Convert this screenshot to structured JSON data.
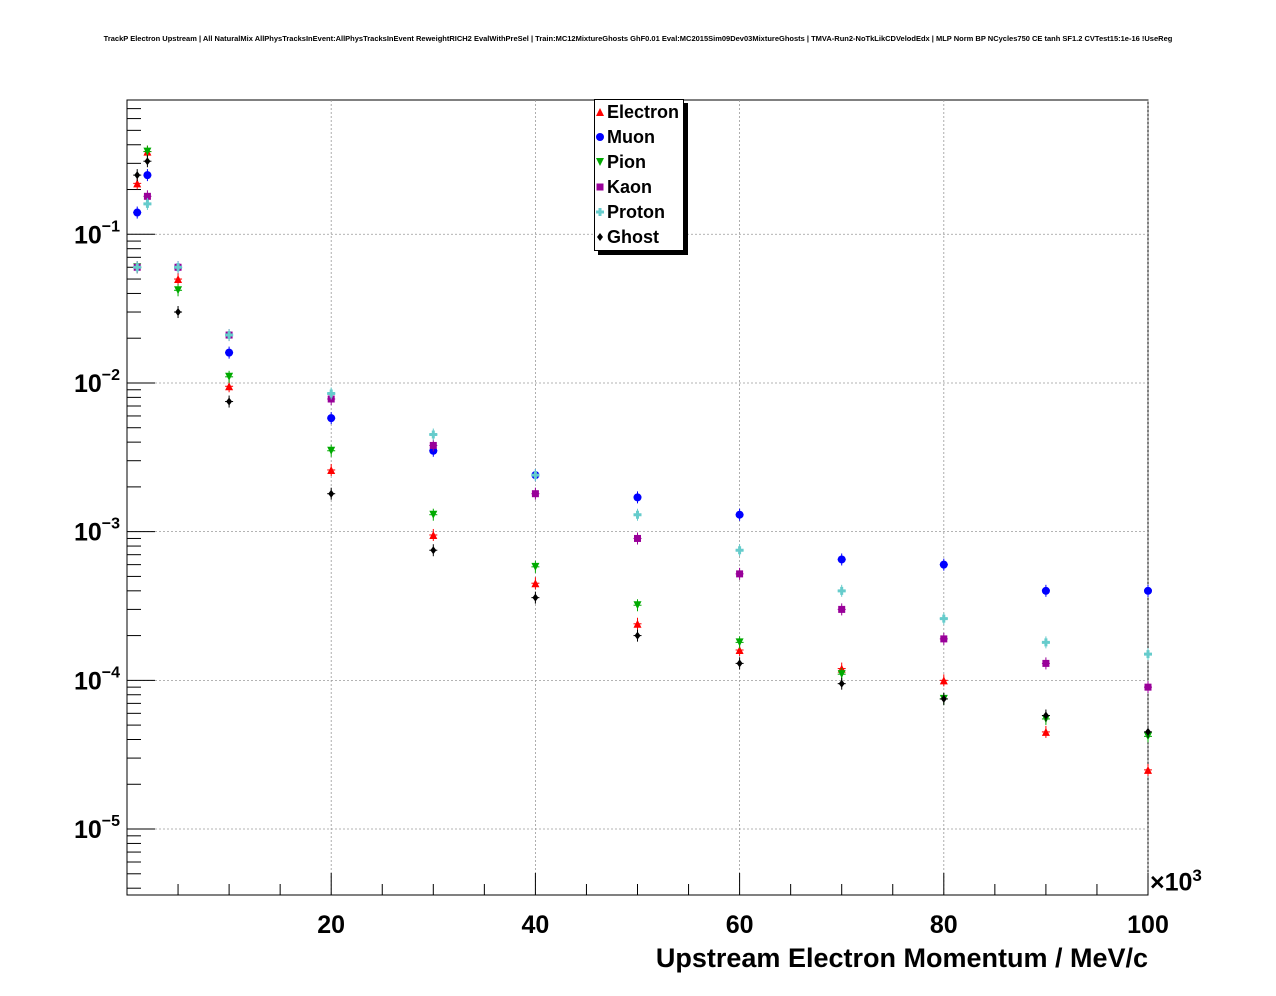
{
  "chart_data": {
    "type": "scatter",
    "title": "TrackP Electron Upstream | All NaturalMix AllPhysTracksInEvent:AllPhysTracksInEvent ReweightRICH2 EvalWithPreSel | Train:MC12MixtureGhosts GhF0.01 Eval:MC2015Sim09Dev03MixtureGhosts | TMVA-Run2-NoTkLikCDVelodEdx | MLP Norm BP NCycles750 CE tanh SF1.2 CVTest15:1e-16 !UseReg",
    "xlabel": "Upstream Electron Momentum / MeV/c",
    "x_multiplier": "×10",
    "x_multiplier_exp": "3",
    "ylabel": "",
    "y_scale": "log",
    "xlim": [
      0,
      100
    ],
    "ylim": [
      3.6e-06,
      0.8
    ],
    "x_ticks": [
      20,
      40,
      60,
      80,
      100
    ],
    "x_tick_labels": [
      "20",
      "40",
      "60",
      "80",
      "100"
    ],
    "y_ticks": [
      1e-05,
      0.0001,
      0.001,
      0.01,
      0.1
    ],
    "y_tick_mantissa": "10",
    "y_tick_exponents": [
      "−5",
      "−4",
      "−3",
      "−2",
      "−1"
    ],
    "grid": true,
    "legend_position": "top-center",
    "series": [
      {
        "name": "Electron",
        "color": "#ff0000",
        "marker": "triangle-up",
        "x": [
          1,
          2,
          5,
          10,
          20,
          30,
          40,
          50,
          60,
          70,
          80,
          90,
          100
        ],
        "y": [
          0.22,
          0.36,
          0.05,
          0.0095,
          0.0026,
          0.00095,
          0.00045,
          0.00024,
          0.00016,
          0.00012,
          0.0001,
          4.5e-05,
          2.5e-05
        ]
      },
      {
        "name": "Muon",
        "color": "#0000ff",
        "marker": "circle",
        "x": [
          1,
          2,
          5,
          10,
          20,
          30,
          40,
          50,
          60,
          70,
          80,
          90,
          100
        ],
        "y": [
          0.14,
          0.25,
          0.06,
          0.016,
          0.0058,
          0.0035,
          0.0024,
          0.0017,
          0.0013,
          0.00065,
          0.0006,
          0.0004,
          0.0004
        ]
      },
      {
        "name": "Pion",
        "color": "#00aa00",
        "marker": "triangle-down",
        "x": [
          1,
          2,
          5,
          10,
          20,
          30,
          40,
          50,
          60,
          70,
          80,
          90,
          100
        ],
        "y": [
          0.06,
          0.36,
          0.042,
          0.011,
          0.0035,
          0.0013,
          0.00058,
          0.00032,
          0.00018,
          0.00011,
          7.5e-05,
          5.5e-05,
          4.2e-05
        ]
      },
      {
        "name": "Kaon",
        "color": "#990099",
        "marker": "square",
        "x": [
          1,
          2,
          5,
          10,
          20,
          30,
          40,
          50,
          60,
          70,
          80,
          90,
          100
        ],
        "y": [
          0.06,
          0.18,
          0.06,
          0.021,
          0.0078,
          0.0038,
          0.0018,
          0.0009,
          0.00052,
          0.0003,
          0.00019,
          0.00013,
          9e-05
        ]
      },
      {
        "name": "Proton",
        "color": "#66cccc",
        "marker": "cross",
        "x": [
          1,
          2,
          5,
          10,
          20,
          30,
          40,
          50,
          60,
          70,
          80,
          90,
          100
        ],
        "y": [
          0.06,
          0.16,
          0.06,
          0.021,
          0.0085,
          0.0045,
          0.0024,
          0.0013,
          0.00075,
          0.0004,
          0.00026,
          0.00018,
          0.00015
        ]
      },
      {
        "name": "Ghost",
        "color": "#000000",
        "marker": "diamond",
        "x": [
          1,
          2,
          5,
          10,
          20,
          30,
          40,
          50,
          60,
          70,
          80,
          90,
          100
        ],
        "y": [
          0.25,
          0.31,
          0.03,
          0.0075,
          0.0018,
          0.00075,
          0.00036,
          0.0002,
          0.00013,
          9.5e-05,
          7.5e-05,
          5.8e-05,
          4.5e-05
        ]
      }
    ]
  }
}
